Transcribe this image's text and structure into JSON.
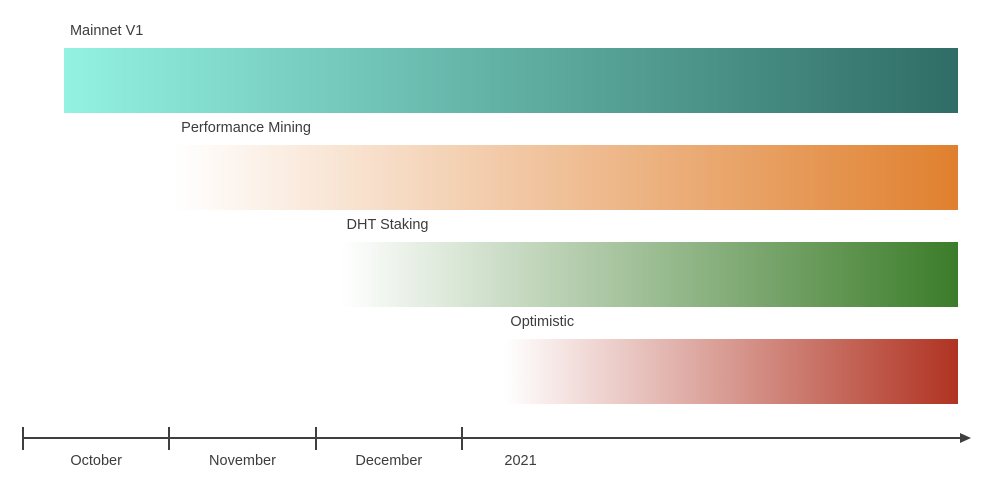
{
  "chart_data": {
    "type": "bar",
    "subtype": "gantt_timeline_roadmap",
    "title": "",
    "background": "#FFFFFF",
    "text_color": "#3C3C3C",
    "tasks": [
      {
        "label": "Mainnet V1",
        "start_month": 0.28,
        "end_month": 6.39,
        "color_start": "#93F2E1",
        "color_end": "#2F6D66"
      },
      {
        "label": "Performance Mining",
        "start_month": 1.04,
        "end_month": 6.39,
        "color_start": "#FFFFFF",
        "color_end": "#E0802E"
      },
      {
        "label": "DHT Staking",
        "start_month": 2.17,
        "end_month": 6.39,
        "color_start": "#FFFFFF",
        "color_end": "#3B7C29"
      },
      {
        "label": "Optimistic",
        "start_month": 3.29,
        "end_month": 6.39,
        "color_start": "#FFFFFF",
        "color_end": "#B03322"
      }
    ],
    "xaxis": {
      "tick_labels": [
        "October",
        "November",
        "December",
        "2021"
      ],
      "tick_positions_month": [
        0,
        1,
        2,
        3
      ],
      "label_center_month": [
        0.5,
        1.5,
        2.5,
        3.4
      ],
      "axis_color": "#3F3F3F",
      "arrow_end": true,
      "grid": false,
      "legend": "none"
    }
  }
}
